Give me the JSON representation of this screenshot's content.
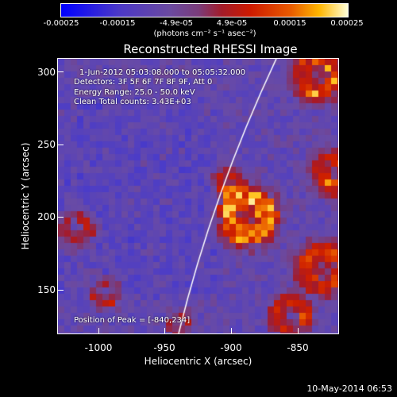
{
  "colorbar": {
    "ticks": [
      "-0.00025",
      "-0.00015",
      "-4.9e-05",
      "4.9e-05",
      "0.00015",
      "0.00025"
    ],
    "unit": "(photons cm⁻² s⁻¹ asec⁻²)"
  },
  "title": "Reconstructed RHESSI Image",
  "info": {
    "time": "1-Jun-2012 05:03:08.000 to 05:05:32.000",
    "detectors": "Detectors: 3F 5F 6F 7F 8F 9F, Att 0",
    "energy": "Energy Range: 25.0 - 50.0 keV",
    "clean": "Clean    Total counts: 3.43E+03",
    "peak": "Position of Peak = [-840,234]"
  },
  "axes": {
    "xlabel": "Heliocentric X (arcsec)",
    "ylabel": "Heliocentric Y (arcsec)",
    "xticks": [
      "-1000",
      "-950",
      "-900",
      "-850"
    ],
    "yticks": [
      "300",
      "250",
      "200",
      "150"
    ]
  },
  "footer": "10-May-2014 06:53"
}
